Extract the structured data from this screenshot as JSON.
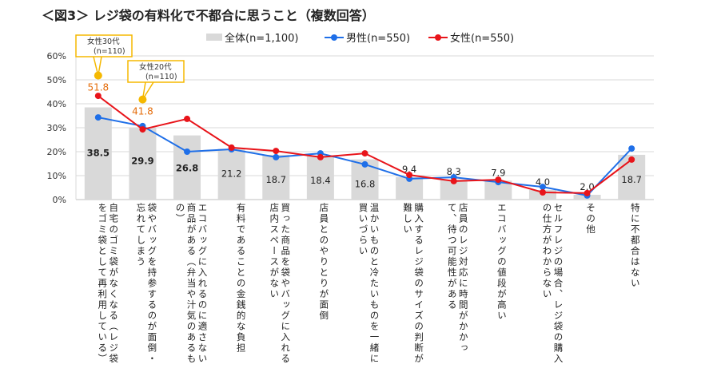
{
  "title": "＜図3＞ レジ袋の有料化で不都合に思うこと（複数回答）",
  "chart_data": {
    "type": "bar",
    "title": "＜図3＞ レジ袋の有料化で不都合に思うこと（複数回答）",
    "ylim": [
      0,
      60
    ],
    "yticks": [
      "0%",
      "10%",
      "20%",
      "30%",
      "40%",
      "50%",
      "60%"
    ],
    "grid": true,
    "legend_position": "top",
    "categories": [
      "自宅のゴミ袋がなくなる（レジ袋をゴミ袋として再利用している）",
      "袋やバッグを持参するのが面倒・忘れてしまう",
      "エコバッグに入れるのに適さない商品がある（弁当や汁気のあるもの）",
      "有料であることの金銭的な負担",
      "買った商品を袋やバッグに入れる店内スペースがない",
      "店員とのやりとりが面倒",
      "温かいものと冷たいものを一緒に買いづらい",
      "購入するレジ袋のサイズの判断が難しい",
      "店員のレジ対応に時間がかかって、待つ可能性がある",
      "エコバッグの値段が高い",
      "セルフレジの場合、レジ袋の購入の仕方がわからない",
      "その他",
      "特に不都合はない"
    ],
    "series": [
      {
        "name": "全体(n=1,100)",
        "type": "bar",
        "color": "#d9d9d9",
        "values": [
          38.5,
          29.9,
          26.8,
          21.2,
          18.7,
          18.4,
          16.8,
          9.4,
          8.3,
          7.9,
          4.0,
          2.0,
          18.7
        ]
      },
      {
        "name": "男性(n=550)",
        "type": "line",
        "color": "#1f6fe8",
        "values": [
          34.3,
          30.7,
          20.0,
          21.0,
          17.7,
          19.3,
          14.7,
          8.7,
          9.3,
          7.3,
          5.3,
          1.7,
          21.3
        ]
      },
      {
        "name": "女性(n=550)",
        "type": "line",
        "color": "#e8141a",
        "values": [
          43.3,
          29.3,
          33.7,
          21.7,
          20.3,
          17.7,
          19.3,
          10.3,
          7.7,
          8.3,
          3.0,
          2.7,
          16.7
        ]
      }
    ],
    "annotations": [
      {
        "category_index": 0,
        "label": "女性30代",
        "sub": "(n=110)",
        "value": 51.8,
        "color": "#f5b800"
      },
      {
        "category_index": 1,
        "label": "女性20代",
        "sub": "(n=110)",
        "value": 41.8,
        "color": "#f5b800"
      }
    ]
  }
}
